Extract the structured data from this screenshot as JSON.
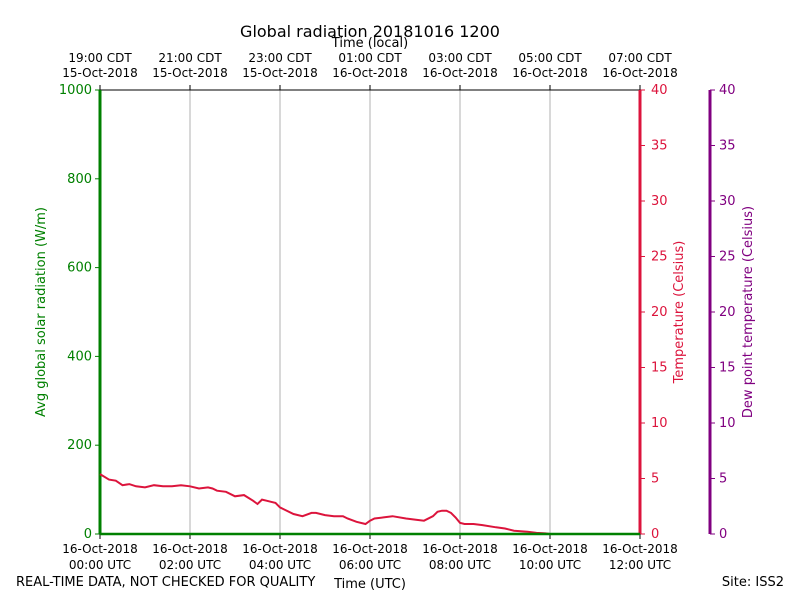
{
  "chart_data": {
    "type": "line",
    "title": "Global radiation 20181016 1200",
    "top_axis_label": "Time (local)",
    "xlabel": "Time (UTC)",
    "y_left_label": "Avg global solar radiation (W/m)",
    "y_right_label": "Temperature (Celsius)",
    "y_far_right_label": "Dew point temperature (Celsius)",
    "y_left_ticks": [
      "0",
      "200",
      "400",
      "600",
      "800",
      "1000"
    ],
    "y_left_ylim": [
      0,
      1000
    ],
    "y_right_ticks": [
      "0",
      "5",
      "10",
      "15",
      "20",
      "25",
      "30",
      "35",
      "40"
    ],
    "y_right_ylim": [
      0,
      40
    ],
    "y_far_right_ticks": [
      "0",
      "5",
      "10",
      "15",
      "20",
      "25",
      "30",
      "35",
      "40"
    ],
    "y_far_right_ylim": [
      0,
      40
    ],
    "x_range_hours": [
      0,
      12
    ],
    "x_ticks": [
      {
        "line1": "16-Oct-2018",
        "line2": "00:00 UTC"
      },
      {
        "line1": "16-Oct-2018",
        "line2": "02:00 UTC"
      },
      {
        "line1": "16-Oct-2018",
        "line2": "04:00 UTC"
      },
      {
        "line1": "16-Oct-2018",
        "line2": "06:00 UTC"
      },
      {
        "line1": "16-Oct-2018",
        "line2": "08:00 UTC"
      },
      {
        "line1": "16-Oct-2018",
        "line2": "10:00 UTC"
      },
      {
        "line1": "16-Oct-2018",
        "line2": "12:00 UTC"
      }
    ],
    "top_ticks": [
      {
        "line1": "19:00 CDT",
        "line2": "15-Oct-2018"
      },
      {
        "line1": "21:00 CDT",
        "line2": "15-Oct-2018"
      },
      {
        "line1": "23:00 CDT",
        "line2": "15-Oct-2018"
      },
      {
        "line1": "01:00 CDT",
        "line2": "16-Oct-2018"
      },
      {
        "line1": "03:00 CDT",
        "line2": "16-Oct-2018"
      },
      {
        "line1": "05:00 CDT",
        "line2": "16-Oct-2018"
      },
      {
        "line1": "07:00 CDT",
        "line2": "16-Oct-2018"
      }
    ],
    "grid": "vertical",
    "colors": {
      "radiation": "#008000",
      "temperature": "#dc143c",
      "dewpoint": "#800080"
    },
    "series": [
      {
        "name": "Temperature (Celsius)",
        "axis": "right",
        "x": [
          0,
          0.2,
          0.35,
          0.5,
          0.65,
          0.8,
          1.0,
          1.2,
          1.4,
          1.5,
          1.6,
          1.8,
          2.0,
          2.2,
          2.4,
          2.5,
          2.6,
          2.8,
          3.0,
          3.2,
          3.4,
          3.5,
          3.6,
          3.7,
          3.8,
          3.9,
          4.0,
          4.1,
          4.3,
          4.5,
          4.7,
          4.8,
          5.0,
          5.2,
          5.4,
          5.5,
          5.7,
          5.9,
          6.0,
          6.1,
          6.3,
          6.5,
          6.8,
          7.0,
          7.2,
          7.4,
          7.5,
          7.6,
          7.7,
          7.8,
          7.9,
          8.0,
          8.1,
          8.3,
          8.5,
          8.8,
          9.0,
          9.2,
          9.5,
          9.7,
          9.9,
          10.0,
          10.5,
          11.0,
          11.5,
          12.0
        ],
        "values": [
          5.4,
          4.9,
          4.8,
          4.4,
          4.5,
          4.3,
          4.2,
          4.4,
          4.3,
          4.3,
          4.3,
          4.4,
          4.3,
          4.1,
          4.2,
          4.1,
          3.9,
          3.8,
          3.4,
          3.5,
          3.0,
          2.7,
          3.1,
          3.0,
          2.9,
          2.8,
          2.4,
          2.2,
          1.8,
          1.6,
          1.9,
          1.9,
          1.7,
          1.6,
          1.6,
          1.4,
          1.1,
          0.9,
          1.2,
          1.4,
          1.5,
          1.6,
          1.4,
          1.3,
          1.2,
          1.6,
          2.0,
          2.1,
          2.1,
          1.9,
          1.5,
          1.0,
          0.9,
          0.9,
          0.8,
          0.6,
          0.5,
          0.3,
          0.2,
          0.1,
          0.05,
          0.0,
          0.0,
          0.0,
          0.0,
          0.0
        ]
      },
      {
        "name": "Avg global solar radiation (W/m)",
        "axis": "left",
        "x": [
          0,
          12
        ],
        "values": [
          0,
          0
        ]
      }
    ]
  },
  "footer": {
    "left": "REAL-TIME DATA, NOT CHECKED FOR QUALITY",
    "right": "Site: ISS2"
  }
}
